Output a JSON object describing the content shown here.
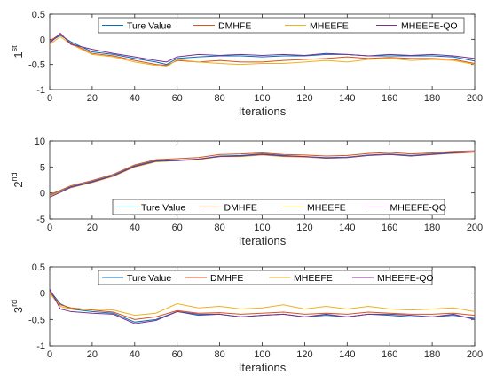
{
  "chart_data": [
    {
      "type": "line",
      "ylabel_base": "1",
      "ylabel_sup": "st",
      "xlabel": "Iterations",
      "xlim": [
        0,
        200
      ],
      "ylim": [
        -1,
        0.5
      ],
      "xticks": [
        0,
        20,
        40,
        60,
        80,
        100,
        120,
        140,
        160,
        180,
        200
      ],
      "yticks": [
        -1,
        -0.5,
        0,
        0.5
      ],
      "ytick_labels": [
        "-1",
        "-0.5",
        "0",
        "0.5"
      ],
      "legend": "top",
      "series": [
        {
          "name": "Ture Value",
          "color": "#0072BD",
          "x": [
            0,
            5,
            10,
            20,
            30,
            40,
            50,
            55,
            60,
            70,
            80,
            90,
            100,
            110,
            120,
            130,
            140,
            150,
            160,
            170,
            180,
            190,
            200
          ],
          "y": [
            -0.05,
            0.08,
            -0.05,
            -0.25,
            -0.3,
            -0.38,
            -0.45,
            -0.5,
            -0.38,
            -0.35,
            -0.33,
            -0.33,
            -0.35,
            -0.33,
            -0.33,
            -0.3,
            -0.3,
            -0.33,
            -0.33,
            -0.33,
            -0.33,
            -0.35,
            -0.43
          ]
        },
        {
          "name": "DMHFE",
          "color": "#D95319",
          "x": [
            0,
            5,
            10,
            20,
            30,
            40,
            50,
            55,
            60,
            70,
            80,
            90,
            100,
            110,
            120,
            130,
            140,
            150,
            160,
            170,
            180,
            190,
            200
          ],
          "y": [
            -0.03,
            0.1,
            -0.08,
            -0.28,
            -0.33,
            -0.42,
            -0.5,
            -0.52,
            -0.42,
            -0.45,
            -0.42,
            -0.45,
            -0.45,
            -0.42,
            -0.4,
            -0.38,
            -0.35,
            -0.38,
            -0.36,
            -0.38,
            -0.38,
            -0.4,
            -0.48
          ]
        },
        {
          "name": "MHEEFE",
          "color": "#EDB120",
          "x": [
            0,
            5,
            10,
            20,
            30,
            40,
            50,
            55,
            60,
            70,
            80,
            90,
            100,
            110,
            120,
            130,
            140,
            150,
            160,
            170,
            180,
            190,
            200
          ],
          "y": [
            -0.1,
            0.05,
            -0.1,
            -0.3,
            -0.35,
            -0.45,
            -0.52,
            -0.55,
            -0.4,
            -0.45,
            -0.48,
            -0.5,
            -0.48,
            -0.48,
            -0.45,
            -0.42,
            -0.45,
            -0.4,
            -0.38,
            -0.42,
            -0.4,
            -0.42,
            -0.5
          ]
        },
        {
          "name": "MHEEFE-QO",
          "color": "#7E2F8E",
          "x": [
            0,
            5,
            10,
            20,
            30,
            40,
            50,
            55,
            60,
            70,
            80,
            90,
            100,
            110,
            120,
            130,
            140,
            150,
            160,
            170,
            180,
            190,
            200
          ],
          "y": [
            -0.08,
            0.12,
            -0.1,
            -0.2,
            -0.28,
            -0.35,
            -0.42,
            -0.45,
            -0.35,
            -0.3,
            -0.32,
            -0.3,
            -0.32,
            -0.3,
            -0.32,
            -0.28,
            -0.3,
            -0.33,
            -0.3,
            -0.32,
            -0.3,
            -0.33,
            -0.38
          ]
        }
      ]
    },
    {
      "type": "line",
      "ylabel_base": "2",
      "ylabel_sup": "nd",
      "xlabel": "Iterations",
      "xlim": [
        0,
        200
      ],
      "ylim": [
        -5,
        10
      ],
      "xticks": [
        0,
        20,
        40,
        60,
        80,
        100,
        120,
        140,
        160,
        180,
        200
      ],
      "yticks": [
        -5,
        0,
        5,
        10
      ],
      "ytick_labels": [
        "-5",
        "0",
        "5",
        "10"
      ],
      "legend": "bottom",
      "series": [
        {
          "name": "Ture Value",
          "color": "#0072BD",
          "x": [
            0,
            5,
            10,
            20,
            30,
            40,
            50,
            60,
            70,
            80,
            90,
            100,
            110,
            120,
            130,
            140,
            150,
            160,
            170,
            180,
            190,
            200
          ],
          "y": [
            -0.5,
            0.3,
            1.2,
            2.2,
            3.4,
            5.2,
            6.2,
            6.3,
            6.5,
            7.1,
            7.2,
            7.5,
            7.2,
            7.0,
            6.8,
            6.9,
            7.3,
            7.5,
            7.2,
            7.5,
            7.8,
            7.9
          ]
        },
        {
          "name": "DMHFE",
          "color": "#D95319",
          "x": [
            0,
            5,
            10,
            20,
            30,
            40,
            50,
            60,
            70,
            80,
            90,
            100,
            110,
            120,
            130,
            140,
            150,
            160,
            170,
            180,
            190,
            200
          ],
          "y": [
            -0.3,
            0.5,
            1.4,
            2.4,
            3.6,
            5.4,
            6.4,
            6.6,
            6.8,
            7.4,
            7.5,
            7.7,
            7.4,
            7.3,
            7.1,
            7.2,
            7.6,
            7.8,
            7.5,
            7.7,
            8.0,
            8.1
          ]
        },
        {
          "name": "MHEEFE",
          "color": "#EDB120",
          "x": [
            0,
            5,
            10,
            20,
            30,
            40,
            50,
            60,
            70,
            80,
            90,
            100,
            110,
            120,
            130,
            140,
            150,
            160,
            170,
            180,
            190,
            200
          ],
          "y": [
            -0.6,
            0.2,
            1.0,
            2.0,
            3.2,
            5.0,
            6.0,
            6.2,
            6.4,
            7.0,
            7.0,
            7.3,
            7.0,
            6.9,
            6.7,
            6.8,
            7.2,
            7.4,
            7.1,
            7.4,
            7.6,
            7.8
          ]
        },
        {
          "name": "MHEEFE-QO",
          "color": "#7E2F8E",
          "x": [
            0,
            5,
            10,
            20,
            30,
            40,
            50,
            60,
            70,
            80,
            90,
            100,
            110,
            120,
            130,
            140,
            150,
            160,
            170,
            180,
            190,
            200
          ],
          "y": [
            -0.8,
            0.1,
            1.1,
            2.1,
            3.3,
            5.1,
            6.1,
            6.2,
            6.5,
            7.0,
            7.1,
            7.4,
            7.1,
            7.0,
            6.7,
            6.8,
            7.2,
            7.4,
            7.1,
            7.4,
            7.7,
            7.9
          ]
        }
      ]
    },
    {
      "type": "line",
      "ylabel_base": "3",
      "ylabel_sup": "rd",
      "xlabel": "Iterations",
      "xlim": [
        0,
        200
      ],
      "ylim": [
        -1,
        0.5
      ],
      "xticks": [
        0,
        20,
        40,
        60,
        80,
        100,
        120,
        140,
        160,
        180,
        200
      ],
      "yticks": [
        -1,
        -0.5,
        0,
        0.5
      ],
      "ytick_labels": [
        "-1",
        "-0.5",
        "0",
        "0.5"
      ],
      "legend": "top",
      "series": [
        {
          "name": "Ture Value",
          "color": "#0072BD",
          "x": [
            0,
            5,
            10,
            20,
            30,
            40,
            50,
            60,
            70,
            80,
            90,
            100,
            110,
            120,
            130,
            140,
            150,
            160,
            170,
            180,
            190,
            200
          ],
          "y": [
            0.05,
            -0.2,
            -0.3,
            -0.35,
            -0.38,
            -0.55,
            -0.5,
            -0.35,
            -0.42,
            -0.4,
            -0.45,
            -0.42,
            -0.4,
            -0.45,
            -0.42,
            -0.45,
            -0.4,
            -0.42,
            -0.45,
            -0.45,
            -0.42,
            -0.48
          ]
        },
        {
          "name": "DMHFE",
          "color": "#D95319",
          "x": [
            0,
            5,
            10,
            20,
            30,
            40,
            50,
            60,
            70,
            80,
            90,
            100,
            110,
            120,
            130,
            140,
            150,
            160,
            170,
            180,
            190,
            200
          ],
          "y": [
            0.02,
            -0.22,
            -0.28,
            -0.32,
            -0.36,
            -0.5,
            -0.45,
            -0.33,
            -0.38,
            -0.37,
            -0.4,
            -0.38,
            -0.36,
            -0.4,
            -0.38,
            -0.4,
            -0.36,
            -0.38,
            -0.4,
            -0.4,
            -0.38,
            -0.42
          ]
        },
        {
          "name": "MHEEFE",
          "color": "#EDB120",
          "x": [
            0,
            5,
            10,
            20,
            30,
            40,
            50,
            60,
            70,
            80,
            90,
            100,
            110,
            120,
            130,
            140,
            150,
            160,
            170,
            180,
            190,
            200
          ],
          "y": [
            0.0,
            -0.25,
            -0.3,
            -0.3,
            -0.32,
            -0.42,
            -0.38,
            -0.2,
            -0.28,
            -0.25,
            -0.3,
            -0.28,
            -0.22,
            -0.3,
            -0.25,
            -0.3,
            -0.25,
            -0.3,
            -0.32,
            -0.3,
            -0.28,
            -0.35
          ]
        },
        {
          "name": "MHEEFE-QO",
          "color": "#7E2F8E",
          "x": [
            0,
            5,
            10,
            20,
            30,
            40,
            50,
            60,
            70,
            80,
            90,
            100,
            110,
            120,
            130,
            140,
            150,
            160,
            170,
            180,
            190,
            200
          ],
          "y": [
            0.08,
            -0.3,
            -0.35,
            -0.38,
            -0.4,
            -0.58,
            -0.52,
            -0.35,
            -0.4,
            -0.4,
            -0.45,
            -0.42,
            -0.4,
            -0.45,
            -0.4,
            -0.45,
            -0.4,
            -0.4,
            -0.42,
            -0.45,
            -0.4,
            -0.5
          ]
        }
      ]
    }
  ]
}
